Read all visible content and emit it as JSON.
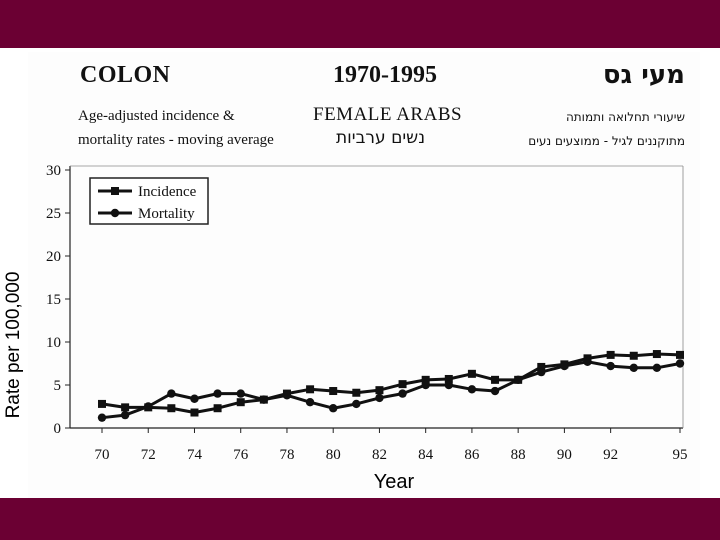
{
  "slide": {
    "title_left": "COLON",
    "title_center": "1970-1995",
    "title_right": "מעי גס",
    "subtitle_left_line1": "Age-adjusted incidence &",
    "subtitle_left_line2": "mortality rates - moving average",
    "subtitle_center_en": "FEMALE  ARABS",
    "subtitle_center_he": "נשים ערביות",
    "subtitle_right_line1": "שיעורי תחלואה ותמותה",
    "subtitle_right_line2": "מתוקננים לגיל - ממוצעים נעים"
  },
  "colors": {
    "frame": "#6b0033",
    "line": "#111111"
  },
  "chart_data": {
    "type": "line",
    "xlabel": "Year",
    "ylabel": "Rate per 100,000",
    "ylim": [
      0,
      30
    ],
    "xlim": [
      70,
      95
    ],
    "yticks": [
      0,
      5,
      10,
      15,
      20,
      25,
      30
    ],
    "xticks": [
      70,
      72,
      74,
      76,
      78,
      80,
      82,
      84,
      86,
      88,
      90,
      92,
      95
    ],
    "legend_position": "top-left",
    "grid": false,
    "x": [
      70,
      71,
      72,
      73,
      74,
      75,
      76,
      77,
      78,
      79,
      80,
      81,
      82,
      83,
      84,
      85,
      86,
      87,
      88,
      89,
      90,
      91,
      92,
      93,
      94,
      95
    ],
    "series": [
      {
        "name": "Incidence",
        "marker": "square",
        "values": [
          2.8,
          2.4,
          2.4,
          2.3,
          1.8,
          2.3,
          3.0,
          3.3,
          4.0,
          4.5,
          4.3,
          4.1,
          4.4,
          5.1,
          5.6,
          5.7,
          6.3,
          5.6,
          5.6,
          7.1,
          7.4,
          8.1,
          8.5,
          8.4,
          8.6,
          8.5
        ]
      },
      {
        "name": "Mortality",
        "marker": "circle",
        "values": [
          1.2,
          1.5,
          2.5,
          4.0,
          3.4,
          4.0,
          4.0,
          3.3,
          3.8,
          3.0,
          2.3,
          2.8,
          3.5,
          4.0,
          5.0,
          5.0,
          4.5,
          4.3,
          5.6,
          6.5,
          7.2,
          7.7,
          7.2,
          7.0,
          7.0,
          7.5
        ]
      }
    ]
  }
}
